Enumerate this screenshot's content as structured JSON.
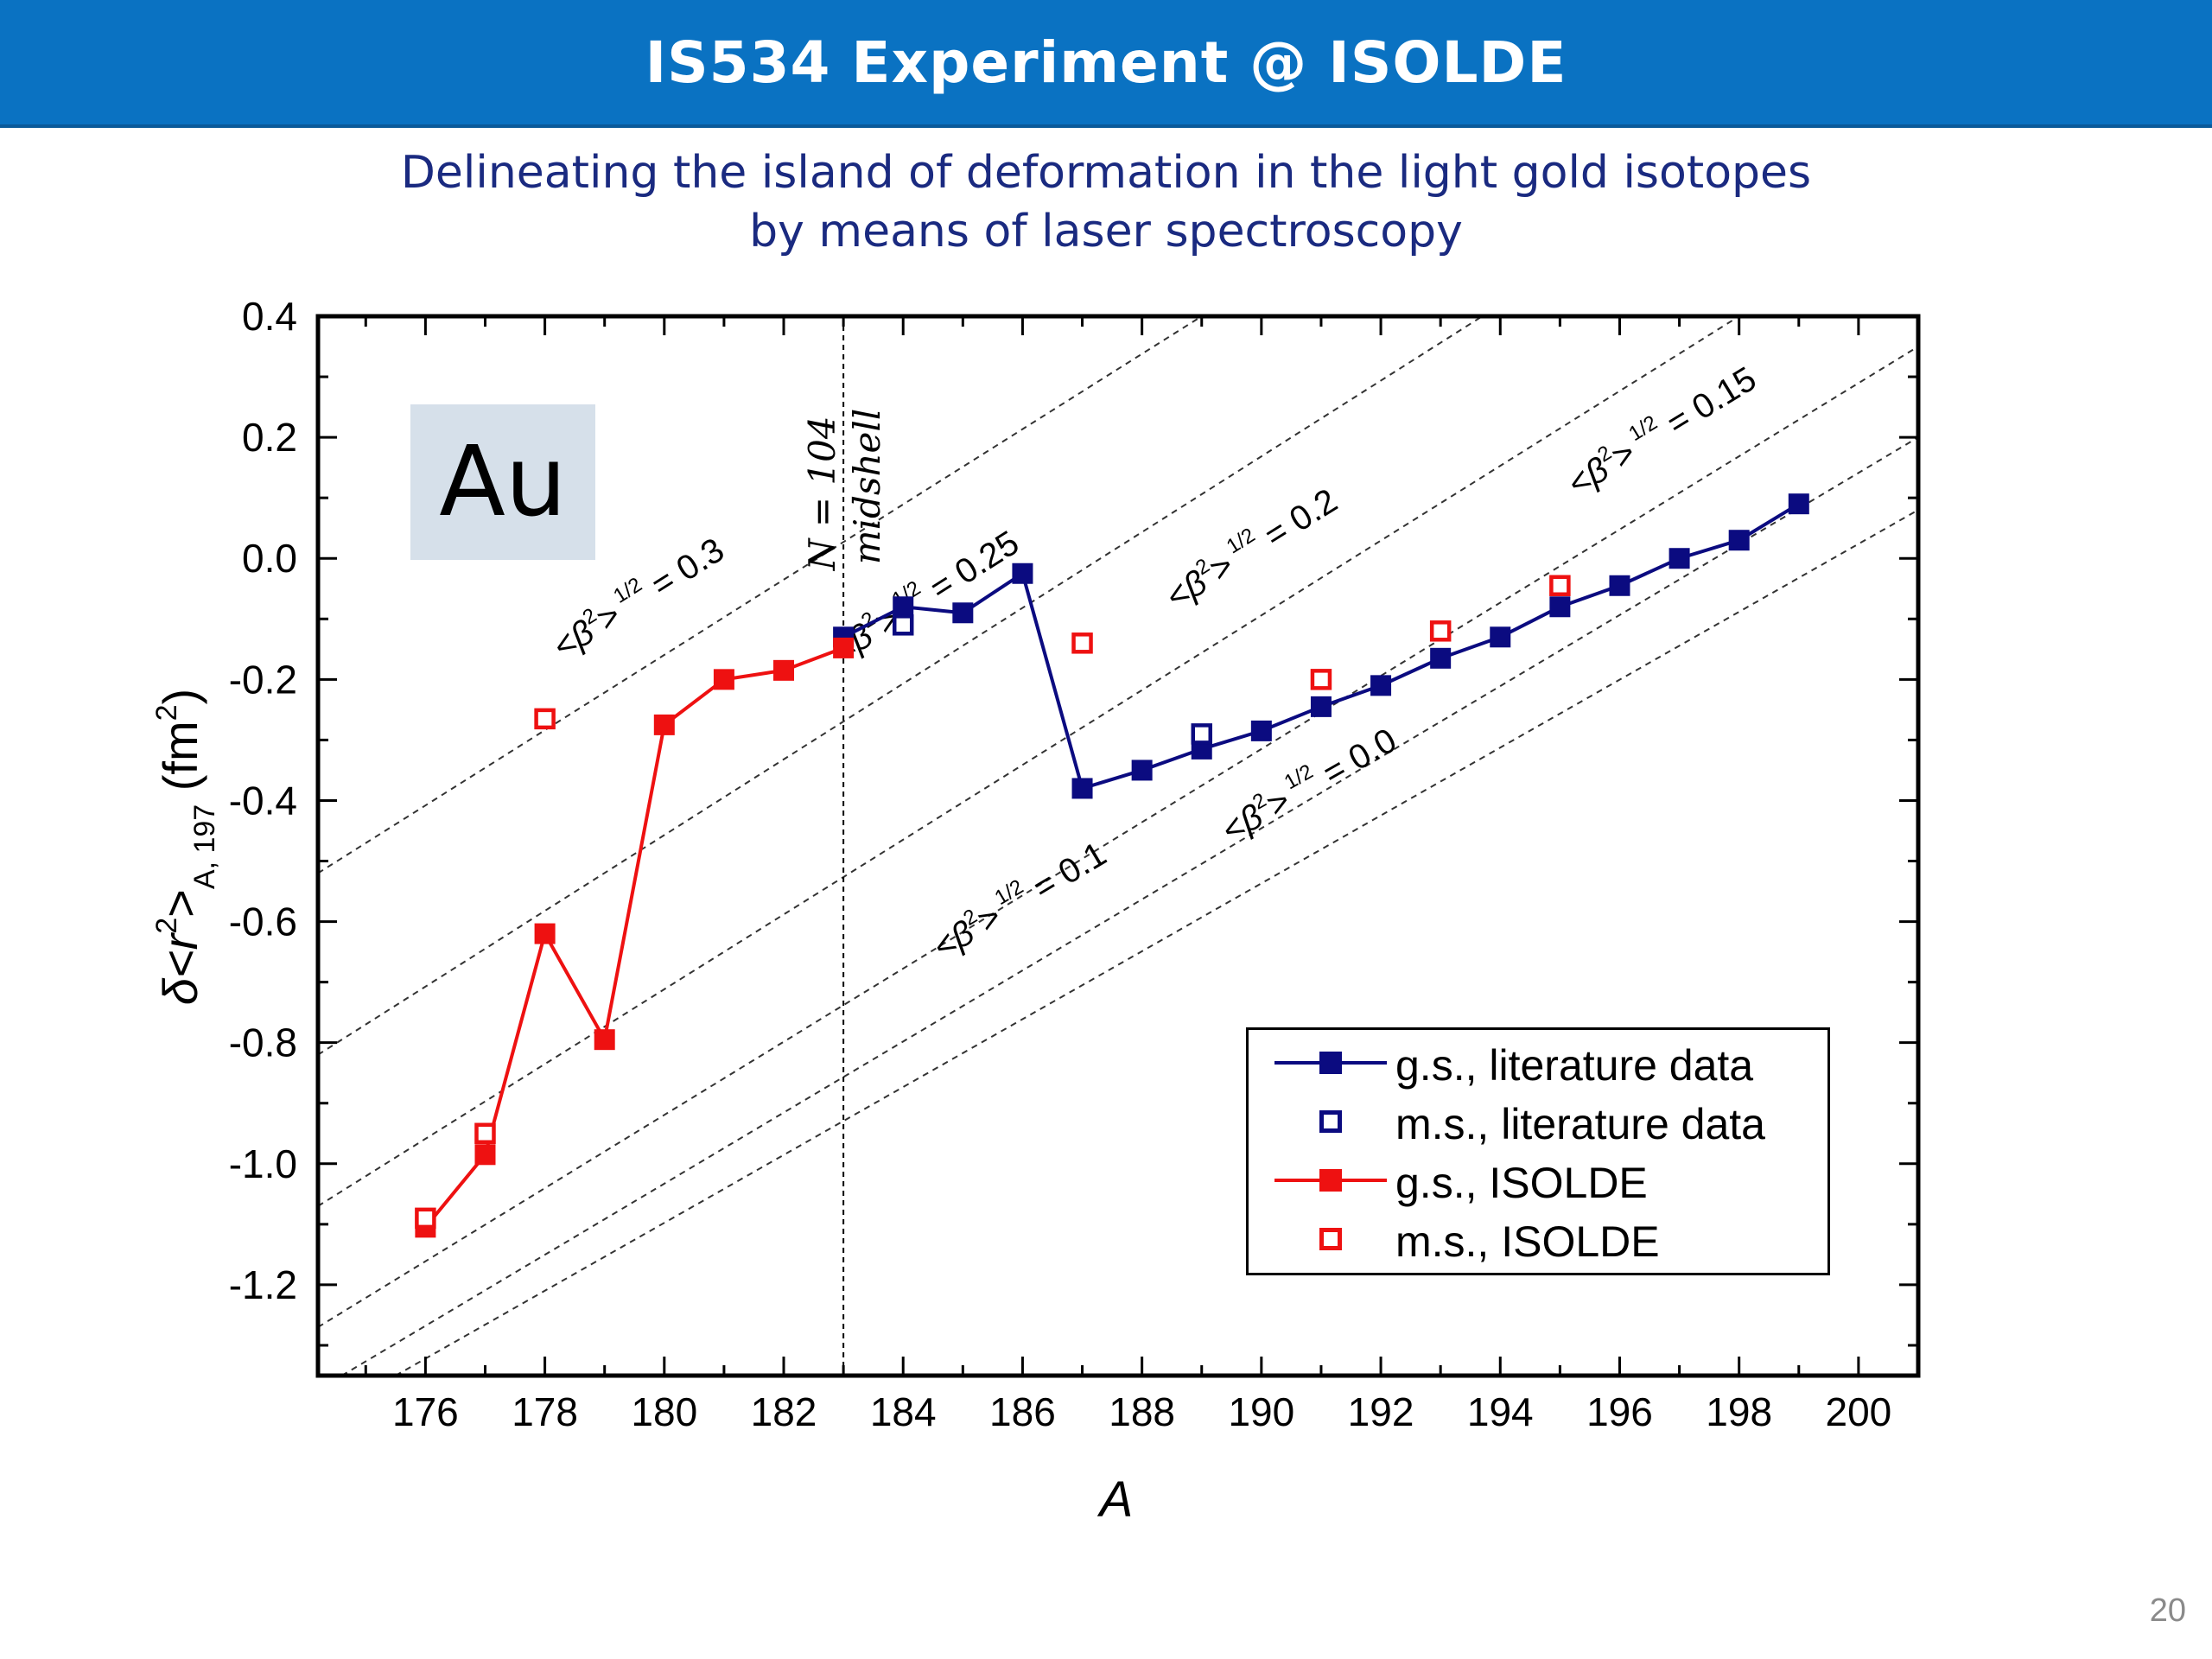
{
  "slide": {
    "title": "IS534 Experiment @ ISOLDE",
    "subtitle_line1": "Delineating the island of deformation in the light gold isotopes",
    "subtitle_line2": "by means of laser spectroscopy",
    "page_number": "20"
  },
  "element_label": "Au",
  "midshell_label": "N = 104",
  "midshell_sublabel": "midshell",
  "colors": {
    "title_bar": "#0a72c2",
    "literature": "#0b0b80",
    "isolde": "#ee1111",
    "subtitle": "#1a2a80",
    "au_box": "#d6e0ea"
  },
  "chart_data": {
    "type": "scatter",
    "xlabel": "A",
    "ylabel_parts": {
      "prefix": "δ<r",
      "sup1": "2",
      "mid": ">",
      "sub": "A, 197",
      "unit": " (fm",
      "sup2": "2",
      "end": ")"
    },
    "xlim": [
      174.2,
      201
    ],
    "ylim": [
      -1.35,
      0.4
    ],
    "x_ticks": [
      176,
      178,
      180,
      182,
      184,
      186,
      188,
      190,
      192,
      194,
      196,
      198,
      200
    ],
    "y_ticks": [
      0.4,
      0.2,
      0.0,
      -0.2,
      -0.4,
      -0.6,
      -0.8,
      -1.0,
      -1.2
    ],
    "y_tick_labels": [
      "0.4",
      "0.2",
      "0.0",
      "-0.2",
      "-0.4",
      "-0.6",
      "-0.8",
      "-1.0",
      "-1.2"
    ],
    "grid": false,
    "legend_position": "bottom-right",
    "midshell_x": 183,
    "series": [
      {
        "name": "g.s., literature data",
        "style": "line-filled-square",
        "color": "#0b0b80",
        "x": [
          183,
          184,
          185,
          186,
          187,
          188,
          189,
          190,
          191,
          192,
          193,
          194,
          195,
          196,
          197,
          198,
          199
        ],
        "y": [
          -0.13,
          -0.08,
          -0.09,
          -0.025,
          -0.38,
          -0.35,
          -0.315,
          -0.285,
          -0.245,
          -0.21,
          -0.165,
          -0.13,
          -0.08,
          -0.045,
          0.0,
          0.03,
          0.09
        ]
      },
      {
        "name": "m.s., literature data",
        "style": "open-square",
        "color": "#0b0b80",
        "x": [
          184,
          189
        ],
        "y": [
          -0.11,
          -0.29
        ]
      },
      {
        "name": "g.s., ISOLDE",
        "style": "line-filled-square",
        "color": "#ee1111",
        "x": [
          176,
          177,
          178,
          179,
          180,
          181,
          182,
          183
        ],
        "y": [
          -1.105,
          -0.985,
          -0.62,
          -0.795,
          -0.275,
          -0.2,
          -0.185,
          -0.148
        ]
      },
      {
        "name": "m.s., ISOLDE",
        "style": "open-square",
        "color": "#ee1111",
        "x": [
          176,
          177,
          178,
          187,
          191,
          193,
          195
        ],
        "y": [
          -1.09,
          -0.95,
          -0.265,
          -0.14,
          -0.2,
          -0.12,
          -0.045
        ]
      }
    ],
    "deformation_lines": [
      {
        "beta": "0.3",
        "x0": 174.2,
        "y0": -0.52,
        "x1": 189,
        "y1": 0.4
      },
      {
        "beta": "0.25",
        "x0": 174.2,
        "y0": -0.82,
        "x1": 193.7,
        "y1": 0.4
      },
      {
        "beta": "0.2",
        "x0": 174.2,
        "y0": -1.07,
        "x1": 198,
        "y1": 0.4
      },
      {
        "beta": "0.15",
        "x0": 174.2,
        "y0": -1.27,
        "x1": 201,
        "y1": 0.35
      },
      {
        "beta": "0.1",
        "x0": 174.6,
        "y0": -1.35,
        "x1": 201,
        "y1": 0.2
      },
      {
        "beta": "0.0",
        "x0": 175.5,
        "y0": -1.35,
        "x1": 201,
        "y1": 0.08
      }
    ]
  }
}
